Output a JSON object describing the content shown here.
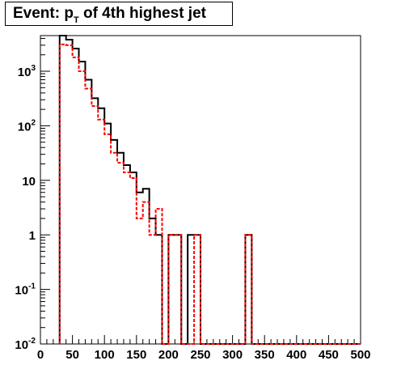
{
  "title": {
    "prefix": "Event: p",
    "subscript": "T",
    "suffix": " of 4th highest jet"
  },
  "chart_data": {
    "type": "histogram",
    "title": "Event: p_T of 4th highest jet",
    "xlabel": "",
    "ylabel": "",
    "xlim": [
      0,
      500
    ],
    "ylim": [
      0.01,
      4500
    ],
    "yscale": "log",
    "bin_width": 10,
    "x_ticks": [
      "0",
      "50",
      "100",
      "150",
      "200",
      "250",
      "300",
      "350",
      "400",
      "450",
      "500"
    ],
    "y_ticks": [
      {
        "base": "10",
        "exp": "-2",
        "value": 0.01
      },
      {
        "base": "10",
        "exp": "-1",
        "value": 0.1
      },
      {
        "base": "1",
        "exp": "",
        "value": 1
      },
      {
        "base": "10",
        "exp": "",
        "value": 10
      },
      {
        "base": "10",
        "exp": "2",
        "value": 100
      },
      {
        "base": "10",
        "exp": "3",
        "value": 1000
      }
    ],
    "series": [
      {
        "style": "solid",
        "color": "#000000",
        "bins": [
          [
            30,
            40,
            4500
          ],
          [
            40,
            50,
            3800
          ],
          [
            50,
            60,
            2600
          ],
          [
            60,
            70,
            1500
          ],
          [
            70,
            80,
            700
          ],
          [
            80,
            90,
            320
          ],
          [
            90,
            100,
            210
          ],
          [
            100,
            110,
            110
          ],
          [
            110,
            120,
            55
          ],
          [
            120,
            130,
            32
          ],
          [
            130,
            140,
            19
          ],
          [
            140,
            150,
            14
          ],
          [
            150,
            160,
            6
          ],
          [
            160,
            170,
            7
          ],
          [
            170,
            180,
            2
          ],
          [
            180,
            190,
            1
          ],
          [
            190,
            200,
            0
          ],
          [
            200,
            210,
            1
          ],
          [
            210,
            220,
            1
          ],
          [
            220,
            230,
            0
          ],
          [
            230,
            240,
            1
          ],
          [
            240,
            250,
            1
          ],
          [
            250,
            320,
            0
          ],
          [
            320,
            330,
            1
          ],
          [
            330,
            500,
            0
          ]
        ]
      },
      {
        "style": "dashed",
        "color": "#ff0000",
        "bins": [
          [
            30,
            40,
            3100
          ],
          [
            40,
            50,
            3000
          ],
          [
            50,
            60,
            1800
          ],
          [
            60,
            70,
            1000
          ],
          [
            70,
            80,
            480
          ],
          [
            80,
            90,
            230
          ],
          [
            90,
            100,
            130
          ],
          [
            100,
            110,
            70
          ],
          [
            110,
            120,
            32
          ],
          [
            120,
            130,
            21
          ],
          [
            130,
            140,
            14
          ],
          [
            140,
            150,
            11
          ],
          [
            150,
            160,
            2
          ],
          [
            160,
            170,
            4
          ],
          [
            170,
            180,
            1
          ],
          [
            180,
            190,
            3
          ],
          [
            190,
            200,
            0
          ],
          [
            200,
            210,
            1
          ],
          [
            210,
            220,
            1
          ],
          [
            220,
            240,
            0
          ],
          [
            240,
            250,
            1
          ],
          [
            250,
            320,
            0
          ],
          [
            320,
            330,
            1
          ],
          [
            330,
            500,
            0
          ]
        ]
      }
    ]
  }
}
